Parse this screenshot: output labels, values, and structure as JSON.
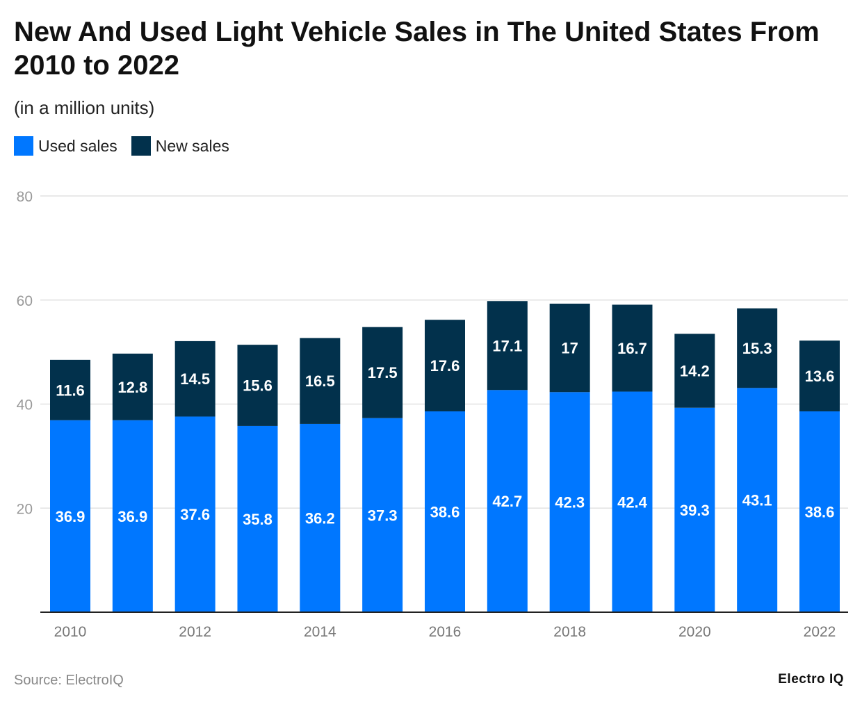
{
  "chart_data": {
    "type": "bar",
    "stacked": true,
    "title": "New And Used Light Vehicle Sales in The United States From 2010 to 2022",
    "subtitle": "(in a million units)",
    "categories": [
      "2010",
      "2011",
      "2012",
      "2013",
      "2014",
      "2015",
      "2016",
      "2017",
      "2018",
      "2019",
      "2020",
      "2021",
      "2022"
    ],
    "x_tick_labels": [
      "2010",
      "2012",
      "2014",
      "2016",
      "2018",
      "2020",
      "2022"
    ],
    "series": [
      {
        "name": "Used sales",
        "color": "#0077ff",
        "values": [
          36.9,
          36.9,
          37.6,
          35.8,
          36.2,
          37.3,
          38.6,
          42.7,
          42.3,
          42.4,
          39.3,
          43.1,
          38.6
        ]
      },
      {
        "name": "New sales",
        "color": "#02314c",
        "values": [
          11.6,
          12.8,
          14.5,
          15.6,
          16.5,
          17.5,
          17.6,
          17.1,
          17,
          16.7,
          14.2,
          15.3,
          13.6
        ]
      }
    ],
    "ylim": [
      0,
      80
    ],
    "y_ticks": [
      "20",
      "40",
      "60",
      "80"
    ],
    "y_tick_values": [
      20,
      40,
      60,
      80
    ],
    "grid": true,
    "legend_placement": "top-left",
    "xlabel": "",
    "ylabel": ""
  },
  "footer": {
    "source": "Source: ElectroIQ",
    "logo": "Electro IQ"
  }
}
